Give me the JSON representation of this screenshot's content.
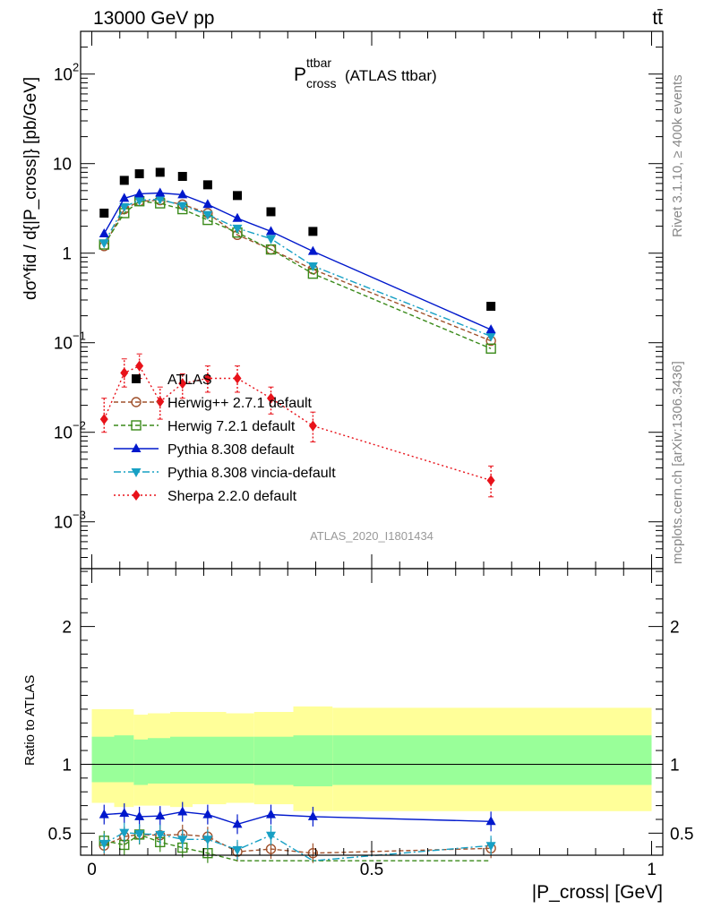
{
  "header": {
    "energy": "13000 GeV pp",
    "process": "tt̄"
  },
  "side": {
    "rivet": "Rivet 3.1.10, ≥ 400k events",
    "mcplots": "mcplots.cern.ch [arXiv:1306.3436]"
  },
  "analysis_id": "ATLAS_2020_I1801434",
  "chart_data": [
    {
      "type": "scatter",
      "panel": "main",
      "title": {
        "main": "P",
        "sup": "ttbar",
        "sub": "cross",
        "suffix": "(ATLAS ttbar)"
      },
      "ylabel": "dσ^fid / d{|P_cross|} [pb/GeV]",
      "yscale": "log",
      "ylim": [
        0.0003,
        300
      ],
      "xlim": [
        -0.02,
        1.02
      ],
      "yticks": [
        {
          "v": 100,
          "label": "10",
          "exp": "2"
        },
        {
          "v": 10,
          "label": "10",
          "exp": ""
        },
        {
          "v": 1,
          "label": "1",
          "exp": ""
        },
        {
          "v": 0.1,
          "label": "10",
          "exp": "−1"
        },
        {
          "v": 0.01,
          "label": "10",
          "exp": "−2"
        },
        {
          "v": 0.001,
          "label": "10",
          "exp": "−3"
        }
      ],
      "x": [
        0.022,
        0.058,
        0.085,
        0.122,
        0.162,
        0.207,
        0.26,
        0.32,
        0.395,
        0.713
      ],
      "series": [
        {
          "name": "ATLAS",
          "color": "#000000",
          "marker": "square-filled",
          "dash": "none",
          "values": [
            2.8,
            6.5,
            7.7,
            8.0,
            7.2,
            5.8,
            4.4,
            2.9,
            1.75,
            0.255
          ]
        },
        {
          "name": "Herwig++ 2.7.1 default",
          "color": "#a0522d",
          "marker": "circle-open",
          "dash": "5,3",
          "values": [
            1.2,
            3.1,
            3.8,
            3.9,
            3.5,
            2.8,
            1.6,
            1.1,
            0.66,
            0.105
          ]
        },
        {
          "name": "Herwig 7.2.1 default",
          "color": "#3a8a1a",
          "marker": "square-open",
          "dash": "5,3",
          "values": [
            1.25,
            2.8,
            3.8,
            3.6,
            3.1,
            2.35,
            1.7,
            1.1,
            0.59,
            0.086
          ]
        },
        {
          "name": "Pythia 8.308 default",
          "color": "#0018cc",
          "marker": "triangle-up",
          "dash": "none",
          "values": [
            1.65,
            4.1,
            4.6,
            4.7,
            4.5,
            3.5,
            2.45,
            1.75,
            1.05,
            0.14
          ]
        },
        {
          "name": "Pythia 8.308 vincia-default",
          "color": "#17a0c4",
          "marker": "triangle-down",
          "dash": "8,3,2,3",
          "values": [
            1.3,
            3.3,
            3.9,
            4.0,
            3.4,
            2.7,
            1.9,
            1.45,
            0.72,
            0.118
          ]
        },
        {
          "name": "Sherpa 2.2.0 default",
          "color": "#e8121a",
          "marker": "diamond",
          "dash": "2,3",
          "values": [
            0.014,
            0.046,
            0.055,
            0.022,
            0.035,
            0.04,
            0.04,
            0.024,
            0.0118,
            0.0029
          ],
          "err_lo": [
            0.004,
            0.014,
            0.015,
            0.008,
            0.011,
            0.012,
            0.012,
            0.008,
            0.004,
            0.001
          ],
          "err_hi": [
            0.01,
            0.02,
            0.02,
            0.01,
            0.01,
            0.015,
            0.015,
            0.008,
            0.005,
            0.0013
          ]
        }
      ],
      "legend": "lower-left"
    },
    {
      "type": "scatter",
      "panel": "ratio",
      "ylabel": "Ratio to ATLAS",
      "xlabel": "|P_cross| [GeV]",
      "ylim": [
        0.34,
        2.42
      ],
      "xlim": [
        -0.02,
        1.02
      ],
      "yticks": [
        0.5,
        1,
        2
      ],
      "ytick_labels": [
        "0.5",
        "1",
        "2"
      ],
      "xticks": [
        0,
        0.5,
        1
      ],
      "xtick_labels": [
        "0",
        "0.5",
        "1"
      ],
      "bins": [
        {
          "lo": 0.0,
          "hi": 0.04,
          "y_lo": 0.72,
          "y_hi": 1.4,
          "g_lo": 0.87,
          "g_hi": 1.2
        },
        {
          "lo": 0.04,
          "hi": 0.075,
          "y_lo": 0.69,
          "y_hi": 1.4,
          "g_lo": 0.87,
          "g_hi": 1.21
        },
        {
          "lo": 0.075,
          "hi": 0.1,
          "y_lo": 0.7,
          "y_hi": 1.36,
          "g_lo": 0.85,
          "g_hi": 1.18
        },
        {
          "lo": 0.1,
          "hi": 0.14,
          "y_lo": 0.7,
          "y_hi": 1.37,
          "g_lo": 0.86,
          "g_hi": 1.19
        },
        {
          "lo": 0.14,
          "hi": 0.18,
          "y_lo": 0.69,
          "y_hi": 1.38,
          "g_lo": 0.86,
          "g_hi": 1.2
        },
        {
          "lo": 0.18,
          "hi": 0.24,
          "y_lo": 0.71,
          "y_hi": 1.38,
          "g_lo": 0.86,
          "g_hi": 1.2
        },
        {
          "lo": 0.24,
          "hi": 0.29,
          "y_lo": 0.72,
          "y_hi": 1.37,
          "g_lo": 0.86,
          "g_hi": 1.2
        },
        {
          "lo": 0.29,
          "hi": 0.36,
          "y_lo": 0.71,
          "y_hi": 1.38,
          "g_lo": 0.85,
          "g_hi": 1.2
        },
        {
          "lo": 0.36,
          "hi": 0.43,
          "y_lo": 0.66,
          "y_hi": 1.42,
          "g_lo": 0.84,
          "g_hi": 1.21
        },
        {
          "lo": 0.43,
          "hi": 1.0,
          "y_lo": 0.66,
          "y_hi": 1.41,
          "g_lo": 0.85,
          "g_hi": 1.21
        }
      ],
      "series": [
        {
          "name": "Herwig++ 2.7.1 default",
          "color": "#a0522d",
          "marker": "circle-open",
          "dash": "5,3",
          "values": [
            0.41,
            0.475,
            0.49,
            0.485,
            0.49,
            0.475,
            0.365,
            0.385,
            0.355,
            0.39
          ]
        },
        {
          "name": "Herwig 7.2.1 default",
          "color": "#3a8a1a",
          "marker": "square-open",
          "dash": "5,3",
          "values": [
            0.445,
            0.415,
            0.49,
            0.435,
            0.395,
            0.355,
            0.3,
            0.3,
            0.3,
            0.3
          ]
        },
        {
          "name": "Pythia 8.308 default",
          "color": "#0018cc",
          "marker": "triangle-up",
          "dash": "none",
          "values": [
            0.635,
            0.645,
            0.62,
            0.625,
            0.655,
            0.635,
            0.565,
            0.635,
            0.62,
            0.585
          ]
        },
        {
          "name": "Pythia 8.308 vincia-default",
          "color": "#17a0c4",
          "marker": "triangle-down",
          "dash": "8,3,2,3",
          "values": [
            0.425,
            0.505,
            0.495,
            0.49,
            0.455,
            0.455,
            0.38,
            0.485,
            0.3,
            0.41
          ]
        }
      ]
    }
  ]
}
